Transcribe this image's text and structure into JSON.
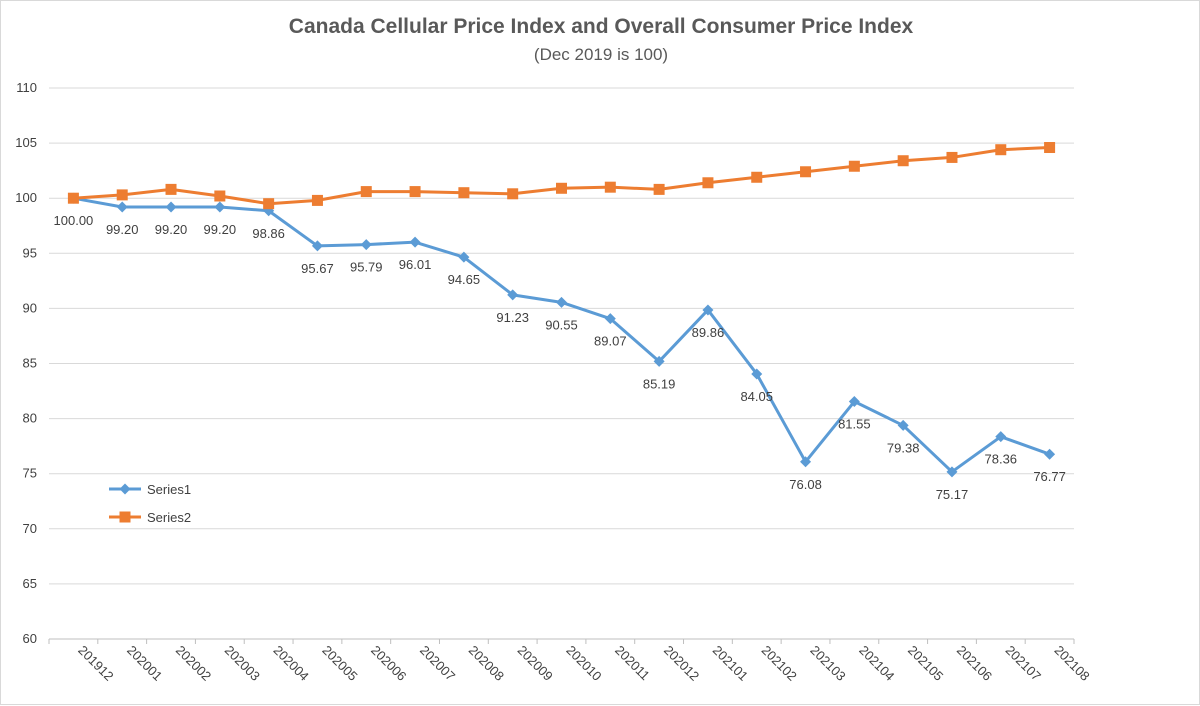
{
  "chart_data": {
    "type": "line",
    "title": "Canada Cellular Price Index and Overall Consumer Price Index",
    "subtitle": "(Dec 2019 is 100)",
    "xlabel": "",
    "ylabel": "",
    "ylim": [
      60,
      110
    ],
    "yticks": [
      60,
      65,
      70,
      75,
      80,
      85,
      90,
      95,
      100,
      105,
      110
    ],
    "grid": "horizontal",
    "legend_position": "left-middle",
    "categories": [
      "201912",
      "202001",
      "202002",
      "202003",
      "202004",
      "202005",
      "202006",
      "202007",
      "202008",
      "202009",
      "202010",
      "202011",
      "202012",
      "202101",
      "202102",
      "202103",
      "202104",
      "202105",
      "202106",
      "202107",
      "202108"
    ],
    "series": [
      {
        "name": "Series1",
        "color": "#5b9bd5",
        "marker": "diamond",
        "values": [
          100.0,
          99.2,
          99.2,
          99.2,
          98.86,
          95.67,
          95.79,
          96.01,
          94.65,
          91.23,
          90.55,
          89.07,
          85.19,
          89.86,
          84.05,
          76.08,
          81.55,
          79.38,
          75.17,
          78.36,
          76.77
        ],
        "labels": [
          "100.00",
          "99.20",
          "99.20",
          "99.20",
          "98.86",
          "95.67",
          "95.79",
          "96.01",
          "94.65",
          "91.23",
          "90.55",
          "89.07",
          "85.19",
          "89.86",
          "84.05",
          "76.08",
          "81.55",
          "79.38",
          "75.17",
          "78.36",
          "76.77"
        ]
      },
      {
        "name": "Series2",
        "color": "#ed7d31",
        "marker": "square",
        "values": [
          100.0,
          100.3,
          100.8,
          100.2,
          99.5,
          99.8,
          100.6,
          100.6,
          100.5,
          100.4,
          100.9,
          101.0,
          100.8,
          101.4,
          101.9,
          102.4,
          102.9,
          103.4,
          103.7,
          104.4,
          104.6
        ]
      }
    ]
  }
}
